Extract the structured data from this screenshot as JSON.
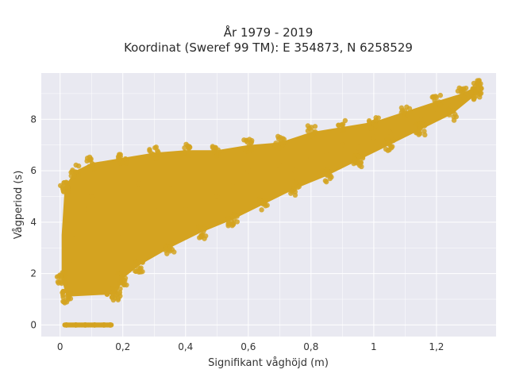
{
  "chart_data": {
    "type": "scatter",
    "title": "År 1979 - 2019",
    "subtitle": "Koordinat (Sweref 99 TM): E 354873, N 6258529",
    "xlabel": "Signifikant våghöjd (m)",
    "ylabel": "Vågperiod (s)",
    "xlim": [
      -0.06,
      1.39
    ],
    "ylim": [
      -0.45,
      9.8
    ],
    "x_ticks": [
      0,
      0.2,
      0.4,
      0.6,
      0.8,
      1,
      1.2
    ],
    "x_tick_labels": [
      "0",
      "0,2",
      "0,4",
      "0,6",
      "0,8",
      "1",
      "1,2"
    ],
    "y_ticks": [
      0,
      2,
      4,
      6,
      8
    ],
    "y_tick_labels": [
      "0",
      "2",
      "4",
      "6",
      "8"
    ],
    "grid": true,
    "marker_color": "#d4a320",
    "background_color": "#e9e9f1",
    "series": [
      {
        "values_description_points": [
          [
            0.02,
            0.0
          ],
          [
            0.05,
            0.0
          ],
          [
            0.08,
            0.0
          ],
          [
            0.11,
            0.0
          ],
          [
            0.14,
            0.0
          ],
          [
            0.16,
            0.0
          ],
          [
            0.01,
            1.3
          ],
          [
            0.03,
            2.5
          ],
          [
            0.05,
            3.5
          ],
          [
            0.08,
            4.5
          ],
          [
            0.1,
            5.0
          ],
          [
            0.15,
            1.2
          ],
          [
            0.2,
            3.5
          ],
          [
            0.25,
            5.5
          ],
          [
            0.3,
            4.5
          ],
          [
            0.35,
            5.3
          ],
          [
            0.4,
            4.5
          ],
          [
            0.45,
            5.6
          ],
          [
            0.5,
            5.0
          ],
          [
            0.55,
            5.4
          ],
          [
            0.6,
            6.0
          ],
          [
            0.65,
            5.6
          ],
          [
            0.7,
            6.2
          ],
          [
            0.75,
            6.0
          ],
          [
            0.8,
            6.5
          ],
          [
            0.85,
            6.6
          ],
          [
            0.9,
            7.0
          ],
          [
            0.95,
            6.9
          ],
          [
            1.0,
            7.3
          ],
          [
            1.05,
            7.5
          ],
          [
            1.1,
            8.0
          ],
          [
            1.15,
            8.0
          ],
          [
            1.2,
            8.4
          ],
          [
            1.25,
            8.7
          ],
          [
            1.3,
            9.0
          ],
          [
            1.33,
            9.4
          ]
        ]
      }
    ]
  }
}
